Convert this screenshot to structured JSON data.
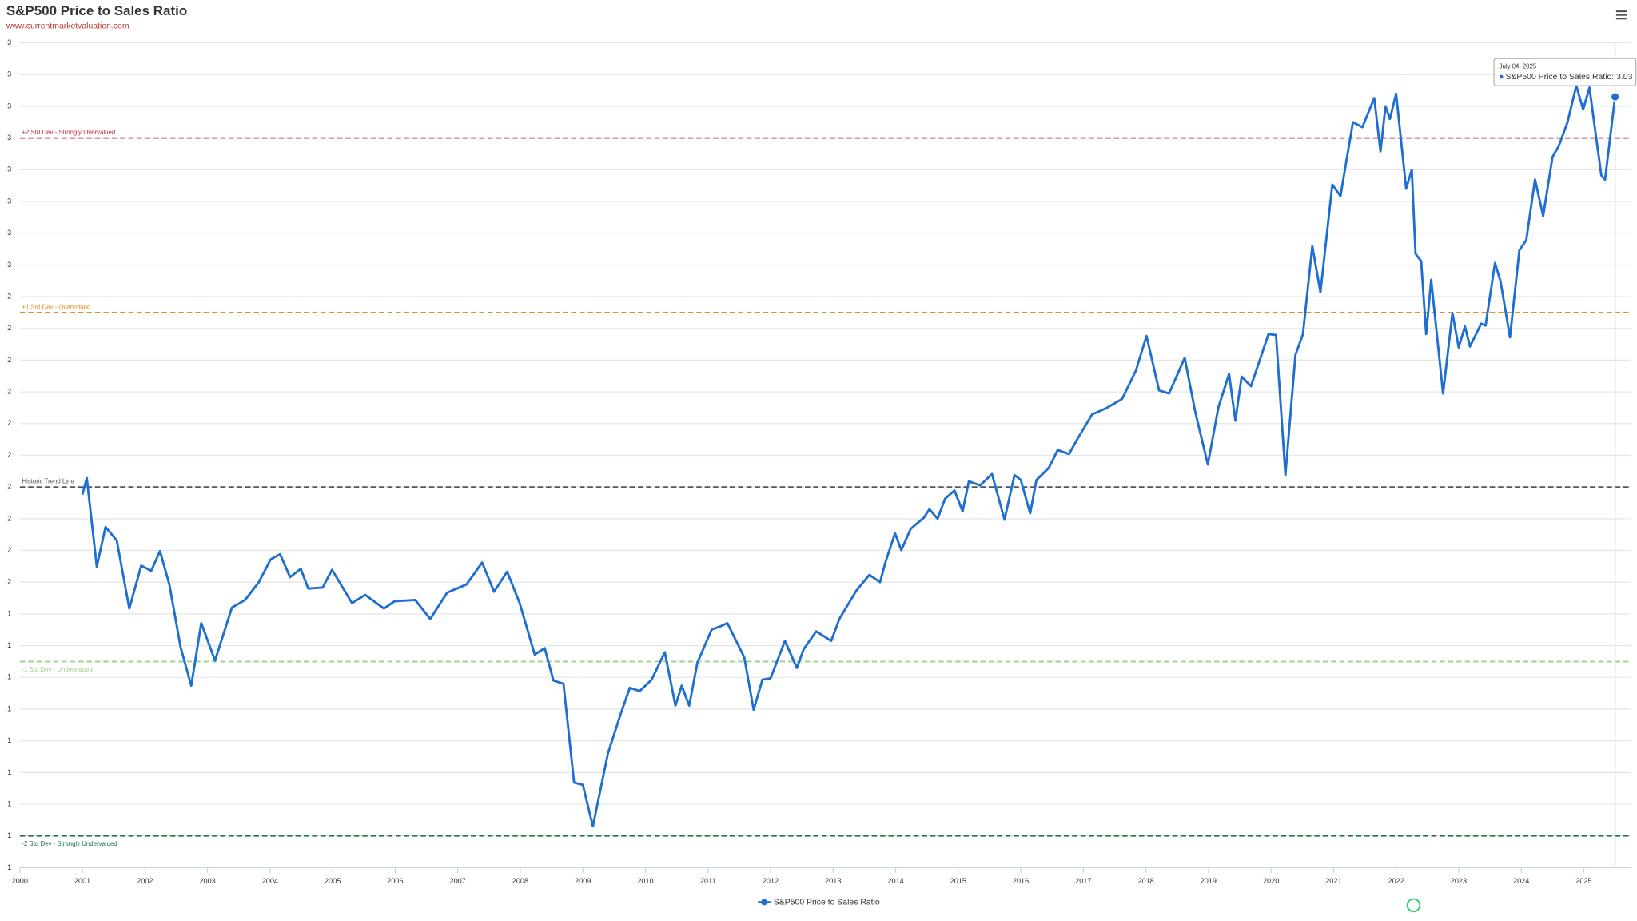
{
  "chart_data": {
    "type": "line",
    "title": "S&P500 Price to Sales Ratio",
    "subtitle": "www.currentmarketvaluation.com",
    "series": [
      {
        "name": "S&P500 Price to Sales Ratio",
        "color": "#1f6fd1",
        "x": [
          2001.0,
          2001.07,
          2001.23,
          2001.37,
          2001.55,
          2001.75,
          2001.94,
          2002.1,
          2002.24,
          2002.39,
          2002.57,
          2002.74,
          2002.9,
          2003.12,
          2003.39,
          2003.6,
          2003.82,
          2004.01,
          2004.16,
          2004.32,
          2004.49,
          2004.61,
          2004.84,
          2004.99,
          2005.31,
          2005.52,
          2005.82,
          2005.99,
          2006.32,
          2006.56,
          2006.83,
          2007.14,
          2007.39,
          2007.58,
          2007.79,
          2007.99,
          2008.23,
          2008.39,
          2008.53,
          2008.69,
          2008.86,
          2009.0,
          2009.16,
          2009.4,
          2009.61,
          2009.75,
          2009.91,
          2010.1,
          2010.31,
          2010.48,
          2010.58,
          2010.7,
          2010.83,
          2011.06,
          2011.2,
          2011.31,
          2011.58,
          2011.73,
          2011.87,
          2012.0,
          2012.23,
          2012.42,
          2012.53,
          2012.73,
          2012.97,
          2013.1,
          2013.37,
          2013.58,
          2013.75,
          2013.84,
          2013.99,
          2014.09,
          2014.24,
          2014.45,
          2014.54,
          2014.67,
          2014.79,
          2014.94,
          2015.07,
          2015.17,
          2015.35,
          2015.54,
          2015.74,
          2015.9,
          2016.0,
          2016.15,
          2016.25,
          2016.45,
          2016.59,
          2016.77,
          2016.91,
          2017.14,
          2017.37,
          2017.62,
          2017.84,
          2018.01,
          2018.21,
          2018.37,
          2018.62,
          2018.79,
          2018.99,
          2019.16,
          2019.33,
          2019.43,
          2019.53,
          2019.68,
          2019.96,
          2020.08,
          2020.23,
          2020.39,
          2020.51,
          2020.66,
          2020.79,
          2020.98,
          2021.11,
          2021.31,
          2021.46,
          2021.65,
          2021.75,
          2021.83,
          2021.9,
          2022.0,
          2022.16,
          2022.25,
          2022.31,
          2022.4,
          2022.48,
          2022.56,
          2022.75,
          2022.9,
          2023.0,
          2023.1,
          2023.18,
          2023.36,
          2023.43,
          2023.58,
          2023.67,
          2023.82,
          2023.97,
          2024.08,
          2024.22,
          2024.35,
          2024.5,
          2024.6,
          2024.74,
          2024.88,
          2024.99,
          2025.09,
          2025.28,
          2025.34,
          2025.5
        ],
        "values": [
          1.776,
          1.828,
          1.549,
          1.674,
          1.631,
          1.417,
          1.552,
          1.536,
          1.598,
          1.493,
          1.295,
          1.174,
          1.371,
          1.253,
          1.42,
          1.444,
          1.5,
          1.572,
          1.588,
          1.516,
          1.542,
          1.48,
          1.483,
          1.539,
          1.434,
          1.46,
          1.417,
          1.44,
          1.444,
          1.384,
          1.467,
          1.493,
          1.562,
          1.47,
          1.533,
          1.434,
          1.272,
          1.292,
          1.19,
          1.18,
          0.868,
          0.861,
          0.73,
          0.96,
          1.088,
          1.167,
          1.157,
          1.193,
          1.279,
          1.111,
          1.174,
          1.111,
          1.246,
          1.351,
          1.361,
          1.371,
          1.263,
          1.098,
          1.193,
          1.197,
          1.315,
          1.23,
          1.289,
          1.345,
          1.315,
          1.384,
          1.473,
          1.523,
          1.5,
          1.565,
          1.654,
          1.601,
          1.668,
          1.703,
          1.73,
          1.7,
          1.763,
          1.789,
          1.723,
          1.818,
          1.805,
          1.841,
          1.697,
          1.838,
          1.822,
          1.717,
          1.822,
          1.861,
          1.917,
          1.904,
          1.953,
          2.029,
          2.049,
          2.078,
          2.167,
          2.276,
          2.105,
          2.095,
          2.207,
          2.036,
          1.871,
          2.052,
          2.157,
          2.009,
          2.148,
          2.118,
          2.282,
          2.279,
          1.838,
          2.216,
          2.282,
          2.559,
          2.414,
          2.753,
          2.717,
          2.95,
          2.934,
          3.026,
          2.858,
          3.0,
          2.96,
          3.04,
          2.74,
          2.8,
          2.535,
          2.512,
          2.282,
          2.453,
          2.095,
          2.348,
          2.24,
          2.306,
          2.243,
          2.315,
          2.309,
          2.506,
          2.447,
          2.272,
          2.546,
          2.578,
          2.769,
          2.654,
          2.84,
          2.875,
          2.95,
          3.065,
          2.99,
          3.059,
          2.782,
          2.769,
          3.03
        ]
      }
    ],
    "xlim": [
      2000,
      2025.75
    ],
    "xticks": [
      2000,
      2001,
      2002,
      2003,
      2004,
      2005,
      2006,
      2007,
      2008,
      2009,
      2010,
      2011,
      2012,
      2013,
      2014,
      2015,
      2016,
      2017,
      2018,
      2019,
      2020,
      2021,
      2022,
      2023,
      2024,
      2025
    ],
    "ylim": [
      0.6,
      3.2
    ],
    "yticks": [
      {
        "value": 0.6,
        "label": "1"
      },
      {
        "value": 0.7,
        "label": "1"
      },
      {
        "value": 0.8,
        "label": "1"
      },
      {
        "value": 0.9,
        "label": "1"
      },
      {
        "value": 1.0,
        "label": "1"
      },
      {
        "value": 1.1,
        "label": "1"
      },
      {
        "value": 1.2,
        "label": "1"
      },
      {
        "value": 1.3,
        "label": "1"
      },
      {
        "value": 1.4,
        "label": "1"
      },
      {
        "value": 1.5,
        "label": "2"
      },
      {
        "value": 1.6,
        "label": "2"
      },
      {
        "value": 1.7,
        "label": "2"
      },
      {
        "value": 1.8,
        "label": "2"
      },
      {
        "value": 1.9,
        "label": "2"
      },
      {
        "value": 2.0,
        "label": "2"
      },
      {
        "value": 2.1,
        "label": "2"
      },
      {
        "value": 2.2,
        "label": "2"
      },
      {
        "value": 2.3,
        "label": "2"
      },
      {
        "value": 2.4,
        "label": "2"
      },
      {
        "value": 2.5,
        "label": "3"
      },
      {
        "value": 2.6,
        "label": "3"
      },
      {
        "value": 2.7,
        "label": "3"
      },
      {
        "value": 2.8,
        "label": "3"
      },
      {
        "value": 2.9,
        "label": "3"
      },
      {
        "value": 3.0,
        "label": "3"
      },
      {
        "value": 3.1,
        "label": "3"
      },
      {
        "value": 3.2,
        "label": "3"
      }
    ],
    "grid": true,
    "plot_lines": [
      {
        "value": 2.9,
        "label": "+2 Std Dev - Strongly Overvalued",
        "color": "#c62a3c"
      },
      {
        "value": 2.35,
        "label": "+1 Std Dev - Overvalued",
        "color": "#e3902a"
      },
      {
        "value": 1.8,
        "label": "Historic Trend Line",
        "color": "#555555"
      },
      {
        "value": 1.25,
        "label": "-1 Std Dev - Undervalued",
        "color": "#9fd08c"
      },
      {
        "value": 0.7,
        "label": "-2 Std Dev - Strongly Undervalued",
        "color": "#23774a"
      }
    ],
    "tooltip": {
      "date": "July 04, 2025",
      "text": "S&P500 Price to Sales Ratio: 3.03"
    },
    "legend": "bottom"
  }
}
